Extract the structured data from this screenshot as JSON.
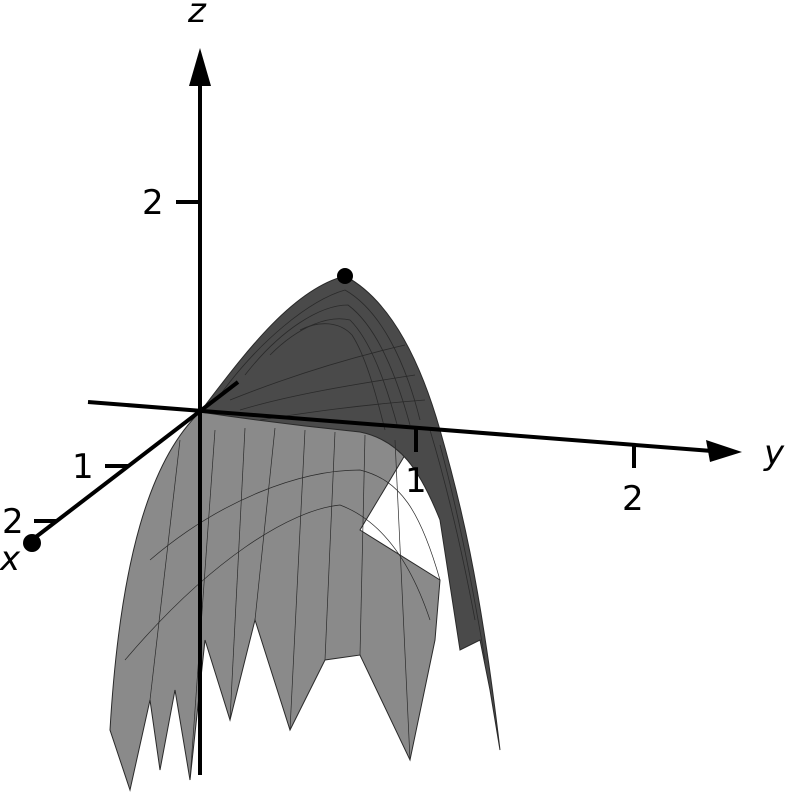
{
  "axes": {
    "x_label": "x",
    "y_label": "y",
    "z_label": "z"
  },
  "ticks": {
    "x": [
      "1",
      "2"
    ],
    "y": [
      "1",
      "2"
    ],
    "z": [
      "2"
    ]
  },
  "colors": {
    "axis": "#000000",
    "surface_dark": "#4a4a4a",
    "surface_light": "#8a8a8a",
    "mesh": "#2a2a2a",
    "background": "#ffffff"
  }
}
